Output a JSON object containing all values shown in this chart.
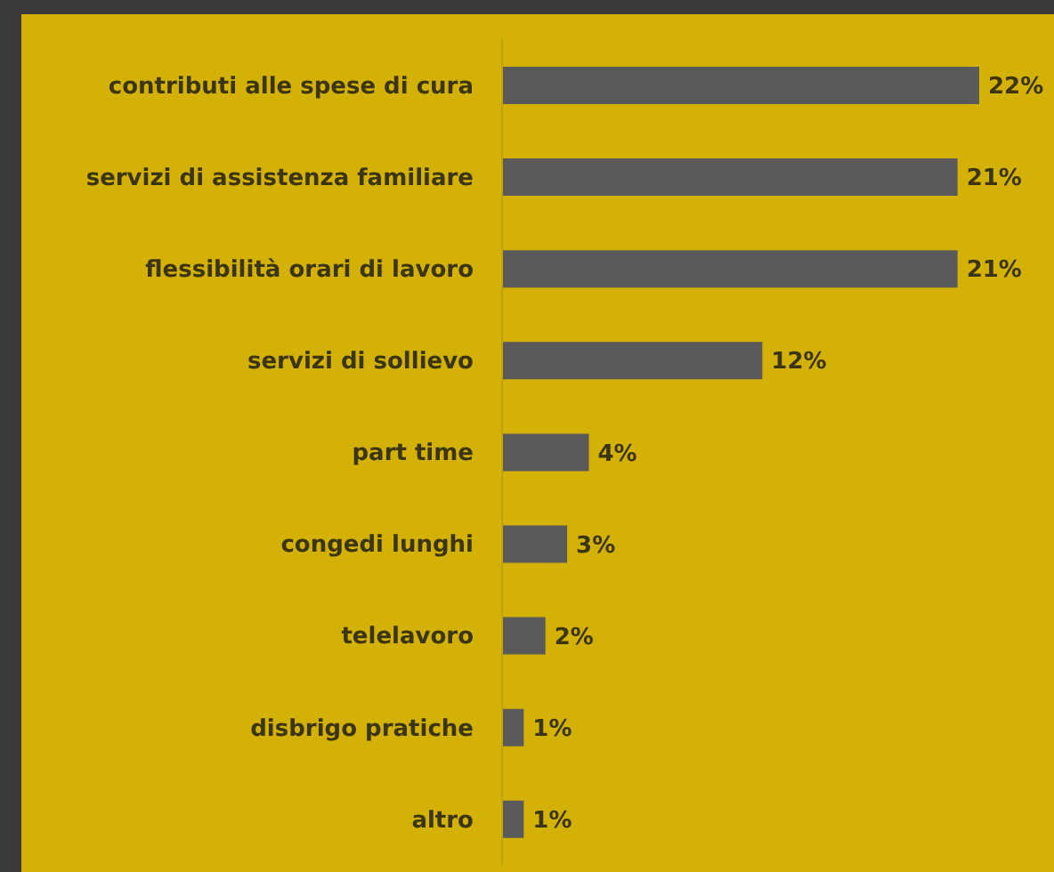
{
  "chart_data": {
    "type": "bar",
    "orientation": "horizontal",
    "categories": [
      "contributi alle spese di cura",
      "servizi di assistenza familiare",
      "flessibilità orari di lavoro",
      "servizi di sollievo",
      "part time",
      "congedi lunghi",
      "telelavoro",
      "disbrigo pratiche",
      "altro"
    ],
    "values": [
      22,
      21,
      21,
      12,
      4,
      3,
      2,
      1,
      1
    ],
    "value_labels": [
      "22%",
      "21%",
      "21%",
      "12%",
      "4%",
      "3%",
      "2%",
      "1%",
      "1%"
    ],
    "color": "#5a5a5a",
    "tick_labels": "y"
  }
}
